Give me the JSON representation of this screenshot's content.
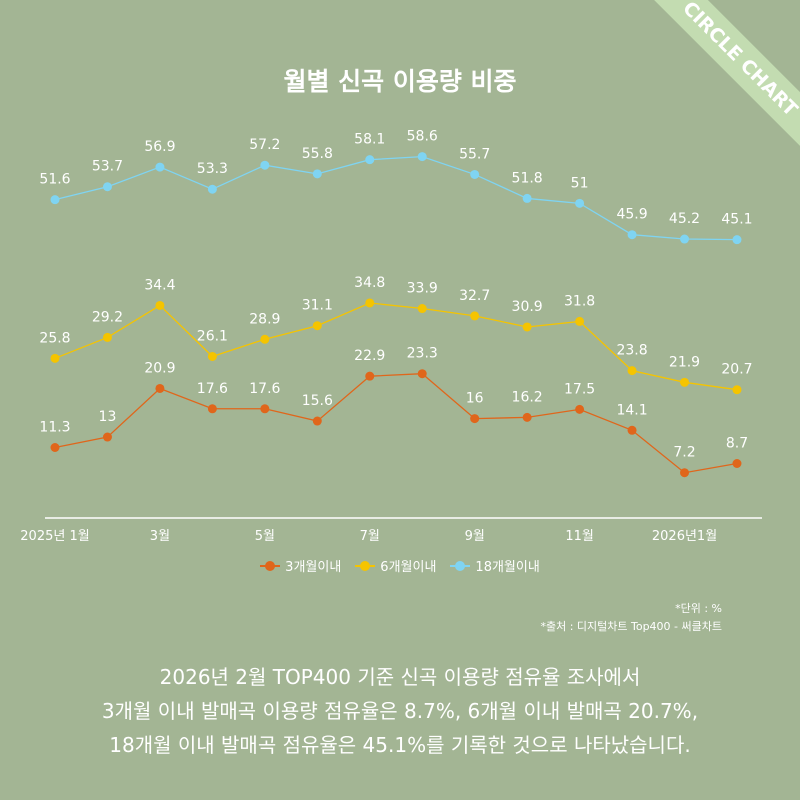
{
  "banner": "CIRCLE CHART",
  "chart_data": {
    "type": "line",
    "title": "월별 신곡 이용량 비중",
    "x": [
      "2025-01",
      "2025-02",
      "2025-03",
      "2025-04",
      "2025-05",
      "2025-06",
      "2025-07",
      "2025-08",
      "2025-09",
      "2025-10",
      "2025-11",
      "2025-12",
      "2026-01",
      "2026-02"
    ],
    "tick_labels": [
      {
        "index": 0,
        "label": "2025년 1월"
      },
      {
        "index": 2,
        "label": "3월"
      },
      {
        "index": 4,
        "label": "5월"
      },
      {
        "index": 6,
        "label": "7월"
      },
      {
        "index": 8,
        "label": "9월"
      },
      {
        "index": 10,
        "label": "11월"
      },
      {
        "index": 12,
        "label": "2026년1월"
      }
    ],
    "ylim": [
      0,
      84
    ],
    "grid": false,
    "legend_position": "bottom",
    "series": [
      {
        "name": "3개월이내",
        "color": "#e0661b",
        "values": [
          11.3,
          13,
          20.9,
          17.6,
          17.6,
          15.6,
          22.9,
          23.3,
          16,
          16.2,
          17.5,
          14.1,
          7.2,
          8.7
        ]
      },
      {
        "name": "6개월이내",
        "color": "#f5c400",
        "values": [
          25.8,
          29.2,
          34.4,
          26.1,
          28.9,
          31.1,
          34.8,
          33.9,
          32.7,
          30.9,
          31.8,
          23.8,
          21.9,
          20.7
        ]
      },
      {
        "name": "18개월이내",
        "color": "#7fd4f2",
        "values": [
          51.6,
          53.7,
          56.9,
          53.3,
          57.2,
          55.8,
          58.1,
          58.6,
          55.7,
          51.8,
          51,
          45.9,
          45.2,
          45.1
        ]
      }
    ]
  },
  "notes": {
    "unit": "*단위 : %",
    "source": "*출처 :  디지털차트 Top400 - 써클차트"
  },
  "summary": [
    "2026년 2월 TOP400 기준 신곡 이용량 점유율 조사에서",
    "3개월 이내 발매곡 이용량 점유율은 8.7%, 6개월 이내 발매곡 20.7%,",
    "18개월 이내 발매곡 점유율은 45.1%를 기록한 것으로 나타났습니다."
  ]
}
